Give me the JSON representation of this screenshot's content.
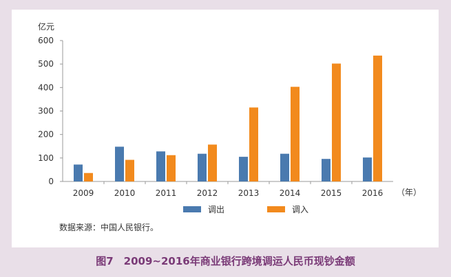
{
  "caption": "图7　2009~2016年商业银行跨境调运人民币现钞金额",
  "source": "数据来源：中国人民银行。",
  "colors": {
    "series_out": "#4a7aaf",
    "series_in": "#f28a1d",
    "caption": "#7a3a77",
    "background": "#e9dfe8"
  },
  "chart_data": {
    "type": "bar",
    "ylabel": "亿元",
    "xunit": "（年）",
    "ylim": [
      0,
      600
    ],
    "yticks": [
      0,
      100,
      200,
      300,
      400,
      500,
      600
    ],
    "categories": [
      "2009",
      "2010",
      "2011",
      "2012",
      "2013",
      "2014",
      "2015",
      "2016"
    ],
    "series": [
      {
        "name": "调出",
        "values": [
          72,
          148,
          128,
          118,
          105,
          118,
          96,
          102
        ]
      },
      {
        "name": "调入",
        "values": [
          36,
          92,
          112,
          157,
          315,
          403,
          502,
          536
        ]
      }
    ],
    "grid": false,
    "legend": "bottom"
  }
}
